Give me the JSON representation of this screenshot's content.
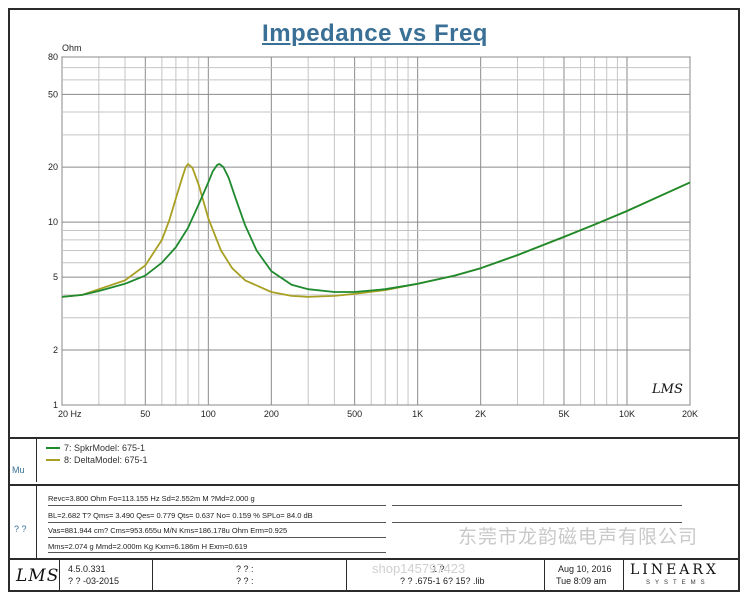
{
  "chart_data": {
    "type": "line",
    "title": "Impedance vs Freq",
    "ylabel": "Ohm",
    "xlabel": "",
    "x_scale": "log",
    "y_scale": "log",
    "xlim": [
      20,
      20000
    ],
    "ylim": [
      1,
      80
    ],
    "x_tick_labels": [
      {
        "v": 20,
        "t": "20  Hz"
      },
      {
        "v": 50,
        "t": "50"
      },
      {
        "v": 100,
        "t": "100"
      },
      {
        "v": 200,
        "t": "200"
      },
      {
        "v": 500,
        "t": "500"
      },
      {
        "v": 1000,
        "t": "1K"
      },
      {
        "v": 2000,
        "t": "2K"
      },
      {
        "v": 5000,
        "t": "5K"
      },
      {
        "v": 10000,
        "t": "10K"
      },
      {
        "v": 20000,
        "t": "20K"
      }
    ],
    "y_tick_labels": [
      {
        "v": 1,
        "t": "1"
      },
      {
        "v": 2,
        "t": "2"
      },
      {
        "v": 5,
        "t": "5"
      },
      {
        "v": 10,
        "t": "10"
      },
      {
        "v": 20,
        "t": "20"
      },
      {
        "v": 50,
        "t": "50"
      },
      {
        "v": 80,
        "t": "80"
      }
    ],
    "grid": true,
    "series": [
      {
        "name": "7: SpkrModel: 675-1",
        "color": "#1f8a2e",
        "x": [
          20,
          25,
          30,
          40,
          50,
          60,
          70,
          80,
          90,
          100,
          105,
          110,
          113,
          118,
          125,
          135,
          150,
          170,
          200,
          250,
          300,
          400,
          500,
          700,
          1000,
          1500,
          2000,
          3000,
          5000,
          7000,
          10000,
          15000,
          20000
        ],
        "y": [
          3.9,
          4.0,
          4.2,
          4.6,
          5.1,
          6.0,
          7.3,
          9.3,
          12.5,
          16.5,
          19.0,
          20.5,
          20.8,
          20.0,
          17.5,
          13.5,
          9.6,
          7.0,
          5.4,
          4.55,
          4.3,
          4.15,
          4.15,
          4.3,
          4.6,
          5.1,
          5.6,
          6.6,
          8.3,
          9.7,
          11.5,
          14.2,
          16.5
        ]
      },
      {
        "name": "8: DeltaModel: 675-1",
        "color": "#a8a022",
        "x": [
          20,
          25,
          30,
          40,
          50,
          60,
          65,
          70,
          75,
          78,
          80,
          84,
          90,
          100,
          115,
          130,
          150,
          200,
          250,
          300,
          400,
          500,
          700,
          1000,
          1500,
          2000,
          3000,
          5000,
          7000,
          10000,
          15000,
          20000
        ],
        "y": [
          3.9,
          4.0,
          4.3,
          4.8,
          5.8,
          8.0,
          10.2,
          13.5,
          17.5,
          20.0,
          20.8,
          19.8,
          16.0,
          10.5,
          7.0,
          5.6,
          4.8,
          4.15,
          3.95,
          3.9,
          3.95,
          4.05,
          4.25,
          4.6,
          5.1,
          5.6,
          6.6,
          8.3,
          9.7,
          11.5,
          14.2,
          16.5
        ]
      }
    ]
  },
  "legend": {
    "entry1": "7: SpkrModel: 675-1",
    "entry2": "8: DeltaModel: 675-1",
    "side_label": "Mu"
  },
  "params": {
    "side_label": "? ?",
    "line1": "Revc=3.800 Ohm  Fo=113.155 Hz  Sd=2.552m M ?Md=2.000 g",
    "line2": "BL=2.682 T?   Qms= 3.490  Qes= 0.779  Qts= 0.637  No= 0.159 %  SPLo= 84.0 dB",
    "line3": "Vas=881.944 cm? Cms=953.655u M/N  Kms=186.178u Ohm  Erm=0.925",
    "line4": "Mms=2.074 g  Mmd=2.000m Kg  Kxm=6.186m H  Exm=0.619"
  },
  "footer": {
    "logo": "LMS",
    "version": "4.5.0.331",
    "version_date": "? ? -03-2015",
    "col2_line1": "? ? :",
    "col2_line2": "? ? :",
    "col3_line1": "1  ?",
    "col3_line2": "? ? .675-1 6? 15? .lib",
    "date_line1": "Aug 10, 2016",
    "date_line2": "Tue  8:09 am",
    "brand": "LINEARX",
    "brand_sub": "SYSTEMS"
  },
  "plot_logo": "LMS",
  "watermark": "东莞市龙韵磁电声有限公司",
  "watermark2": "shop145797423"
}
